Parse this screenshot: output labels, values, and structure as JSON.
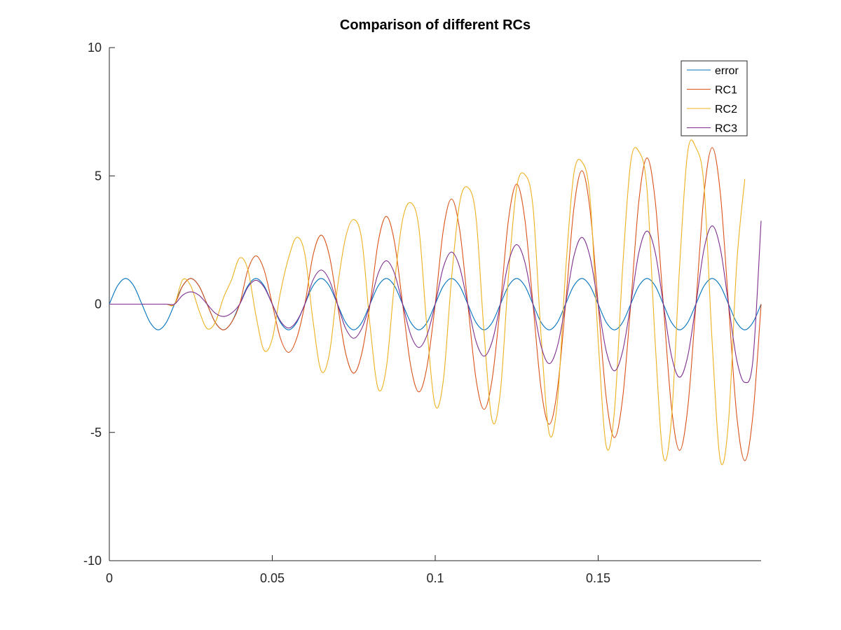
{
  "chart_data": {
    "type": "line",
    "title": "Comparison of different RCs",
    "xlabel": "",
    "ylabel": "",
    "xlim": [
      0,
      0.2
    ],
    "ylim": [
      -10,
      10
    ],
    "x_ticks": [
      0,
      0.05,
      0.1,
      0.15
    ],
    "y_ticks": [
      -10,
      -5,
      0,
      5,
      10
    ],
    "x_tick_labels": [
      "0",
      "0.05",
      "0.1",
      "0.15"
    ],
    "y_tick_labels": [
      "-10",
      "-5",
      "0",
      "5",
      "10"
    ],
    "grid": false,
    "legend_position": "top-right",
    "sample_x_step": 0.0025,
    "series": [
      {
        "name": "error",
        "color": "#0072BD",
        "values": [
          0.0,
          0.71,
          1.0,
          0.71,
          0.0,
          -0.71,
          -1.0,
          -0.71,
          0.0,
          0.71,
          1.0,
          0.71,
          0.0,
          -0.71,
          -1.0,
          -0.71,
          0.0,
          0.71,
          1.0,
          0.71,
          0.0,
          -0.71,
          -1.0,
          -0.71,
          0.0,
          0.71,
          1.0,
          0.71,
          0.0,
          -0.71,
          -1.0,
          -0.71,
          0.0,
          0.71,
          1.0,
          0.71,
          0.0,
          -0.71,
          -1.0,
          -0.71,
          0.0,
          0.71,
          1.0,
          0.71,
          0.0,
          -0.71,
          -1.0,
          -0.71,
          0.0,
          0.71,
          1.0,
          0.71,
          0.0,
          -0.71,
          -1.0,
          -0.71,
          0.0,
          0.71,
          1.0,
          0.71,
          0.0,
          -0.71,
          -1.0,
          -0.71,
          0.0,
          0.71,
          1.0,
          0.71,
          0.0,
          -0.71,
          -1.0,
          -0.71,
          0.0,
          0.71,
          1.0,
          0.71,
          0.0,
          -0.71,
          -1.0,
          -0.71,
          0.0
        ]
      },
      {
        "name": "RC1",
        "color": "#D95319",
        "values": [
          0.0,
          0.0,
          0.0,
          0.0,
          0.0,
          0.0,
          0.0,
          0.0,
          0.0,
          0.71,
          1.0,
          0.71,
          0.0,
          -0.71,
          -1.0,
          -0.71,
          0.0,
          1.33,
          1.88,
          1.33,
          0.0,
          -1.33,
          -1.88,
          -1.33,
          0.0,
          1.9,
          2.69,
          1.9,
          0.0,
          -1.9,
          -2.69,
          -1.9,
          0.0,
          2.42,
          3.42,
          2.42,
          0.0,
          -2.42,
          -3.42,
          -2.42,
          0.0,
          2.9,
          4.1,
          2.9,
          0.0,
          -2.9,
          -4.1,
          -2.9,
          0.0,
          3.31,
          4.68,
          3.31,
          0.0,
          -3.31,
          -4.68,
          -3.31,
          0.0,
          3.68,
          5.2,
          3.68,
          0.0,
          -3.68,
          -5.2,
          -3.68,
          0.0,
          4.03,
          5.7,
          4.03,
          0.0,
          -4.03,
          -5.7,
          -4.03,
          0.0,
          4.31,
          6.1,
          4.31,
          0.0,
          -4.31,
          -6.1,
          -4.31,
          0.0
        ]
      },
      {
        "name": "RC2",
        "color": "#EDB120",
        "values": [
          0.0,
          0.0,
          0.0,
          0.0,
          0.0,
          0.0,
          0.0,
          0.0,
          0.0,
          0.95,
          0.71,
          -0.24,
          -0.95,
          -0.71,
          0.24,
          0.95,
          1.8,
          1.35,
          -0.45,
          -1.8,
          -1.35,
          0.45,
          1.8,
          2.6,
          1.95,
          -0.65,
          -2.6,
          -1.95,
          0.65,
          2.6,
          3.3,
          2.48,
          -0.83,
          -3.3,
          -2.48,
          0.83,
          3.3,
          3.95,
          2.96,
          -0.99,
          -3.95,
          -2.96,
          0.99,
          3.95,
          4.55,
          3.41,
          -1.14,
          -4.55,
          -3.41,
          1.14,
          4.55,
          5.05,
          3.79,
          -1.26,
          -5.05,
          -3.79,
          1.26,
          5.05,
          5.55,
          4.16,
          -1.39,
          -5.55,
          -4.16,
          1.39,
          5.55,
          5.95,
          4.46,
          -1.49,
          -5.95,
          -4.46,
          1.49,
          5.95,
          6.1,
          4.58,
          -1.53,
          -6.1,
          -4.58,
          1.53,
          4.88
        ]
      },
      {
        "name": "RC3",
        "color": "#7E2F8E",
        "values": [
          0.0,
          0.0,
          0.0,
          0.0,
          0.0,
          0.0,
          0.0,
          0.0,
          0.0,
          0.35,
          0.48,
          0.35,
          0.0,
          -0.35,
          -0.48,
          -0.35,
          0.0,
          0.66,
          0.93,
          0.66,
          0.0,
          -0.66,
          -0.93,
          -0.66,
          0.0,
          0.94,
          1.33,
          0.94,
          0.0,
          -0.94,
          -1.33,
          -0.94,
          0.0,
          1.2,
          1.69,
          1.2,
          0.0,
          -1.2,
          -1.69,
          -1.2,
          0.0,
          1.44,
          2.03,
          1.44,
          0.0,
          -1.44,
          -2.03,
          -1.44,
          0.0,
          1.64,
          2.32,
          1.64,
          0.0,
          -1.64,
          -2.32,
          -1.64,
          0.0,
          1.84,
          2.6,
          1.84,
          0.0,
          -1.84,
          -2.6,
          -1.84,
          0.0,
          2.02,
          2.85,
          2.02,
          0.0,
          -2.02,
          -2.85,
          -2.02,
          0.0,
          2.16,
          3.05,
          2.16,
          0.0,
          -2.16,
          -3.05,
          -2.16,
          3.25
        ]
      }
    ]
  }
}
